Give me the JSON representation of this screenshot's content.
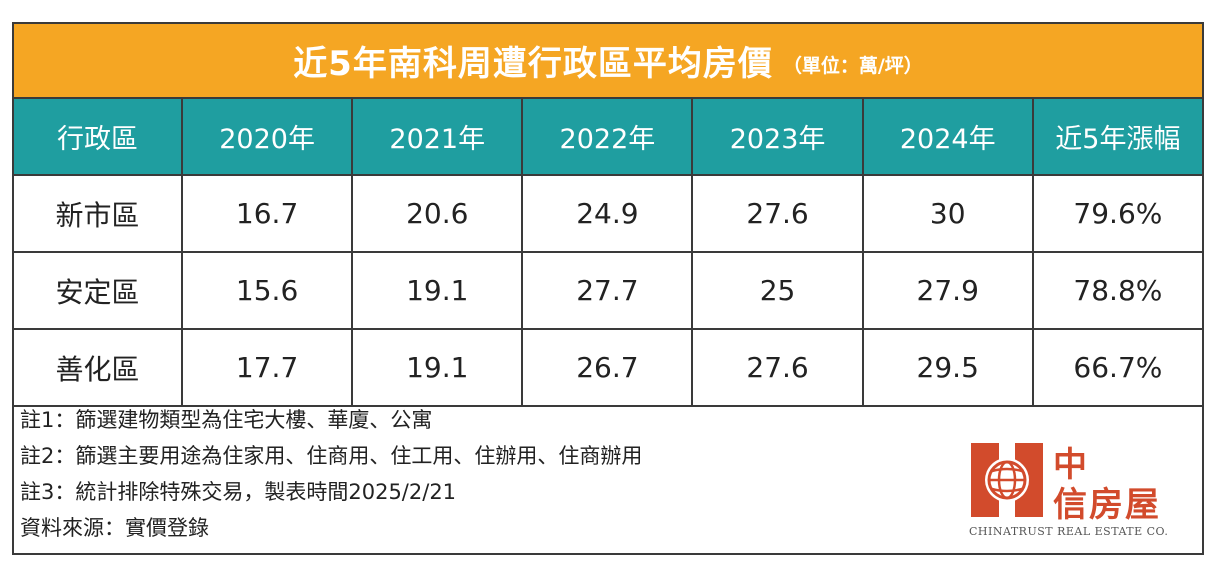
{
  "chart_data": {
    "type": "table",
    "title": "近5年南科周遭行政區平均房價",
    "unit": "（單位：萬/坪）",
    "columns": [
      "行政區",
      "2020年",
      "2021年",
      "2022年",
      "2023年",
      "2024年",
      "近5年漲幅"
    ],
    "rows": [
      [
        "新市區",
        "16.7",
        "20.6",
        "24.9",
        "27.6",
        "30",
        "79.6%"
      ],
      [
        "安定區",
        "15.6",
        "19.1",
        "27.7",
        "25",
        "27.9",
        "78.8%"
      ],
      [
        "善化區",
        "17.7",
        "19.1",
        "26.7",
        "27.6",
        "29.5",
        "66.7%"
      ]
    ],
    "colors": {
      "title_bg": "#f5a623",
      "header_bg": "#1f9ea0",
      "border": "#3a3a3a"
    }
  },
  "notes": [
    "註1：篩選建物類型為住宅大樓、華廈、公寓",
    "註2：篩選主要用途為住家用、住商用、住工用、住辦用、住商辦用",
    "註3：統計排除特殊交易，製表時間2025/2/21",
    "資料來源：實價登錄"
  ],
  "logo": {
    "name_line1": "中",
    "name_line2": "信房屋",
    "english": "CHINATRUST REAL ESTATE CO.",
    "icon": "globe-logo-icon",
    "color": "#d24b2c"
  }
}
